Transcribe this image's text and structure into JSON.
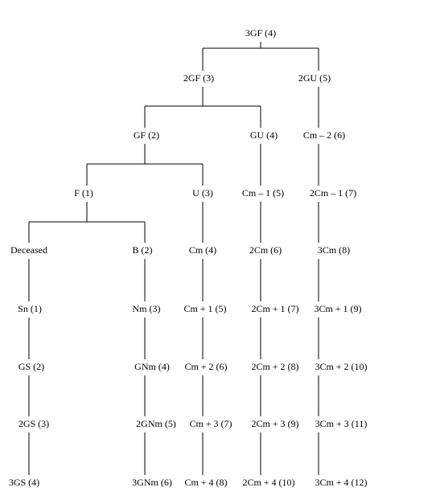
{
  "nodes": [
    {
      "label": "3GF (4)"
    },
    {
      "label": "2GF (3)"
    },
    {
      "label": "2GU (5)"
    },
    {
      "label": "GF (2)"
    },
    {
      "label": "GU (4)"
    },
    {
      "label": "Cm – 2 (6)"
    },
    {
      "label": "F (1)"
    },
    {
      "label": "U (3)"
    },
    {
      "label": "Cm – 1 (5)"
    },
    {
      "label": "2Cm – 1 (7)"
    },
    {
      "label": "Deceased"
    },
    {
      "label": "B (2)"
    },
    {
      "label": "Cm (4)"
    },
    {
      "label": "2Cm (6)"
    },
    {
      "label": "3Cm (8)"
    },
    {
      "label": "Sn (1)"
    },
    {
      "label": "Nm (3)"
    },
    {
      "label": "Cm + 1 (5)"
    },
    {
      "label": "2Cm + 1 (7)"
    },
    {
      "label": "3Cm + 1 (9)"
    },
    {
      "label": "GS (2)"
    },
    {
      "label": "GNm (4)"
    },
    {
      "label": "Cm + 2 (6)"
    },
    {
      "label": "2Cm + 2 (8)"
    },
    {
      "label": "3Cm + 2 (10)"
    },
    {
      "label": "2GS (3)"
    },
    {
      "label": "2GNm (5)"
    },
    {
      "label": "Cm + 3 (7)"
    },
    {
      "label": "2Cm + 3 (9)"
    },
    {
      "label": "3Cm + 3 (11)"
    },
    {
      "label": "3GS (4)"
    },
    {
      "label": "3GNm (6)"
    },
    {
      "label": "Cm + 4 (8)"
    },
    {
      "label": "2Cm + 4 (10)"
    },
    {
      "label": "3Cm + 4 (12)"
    }
  ]
}
